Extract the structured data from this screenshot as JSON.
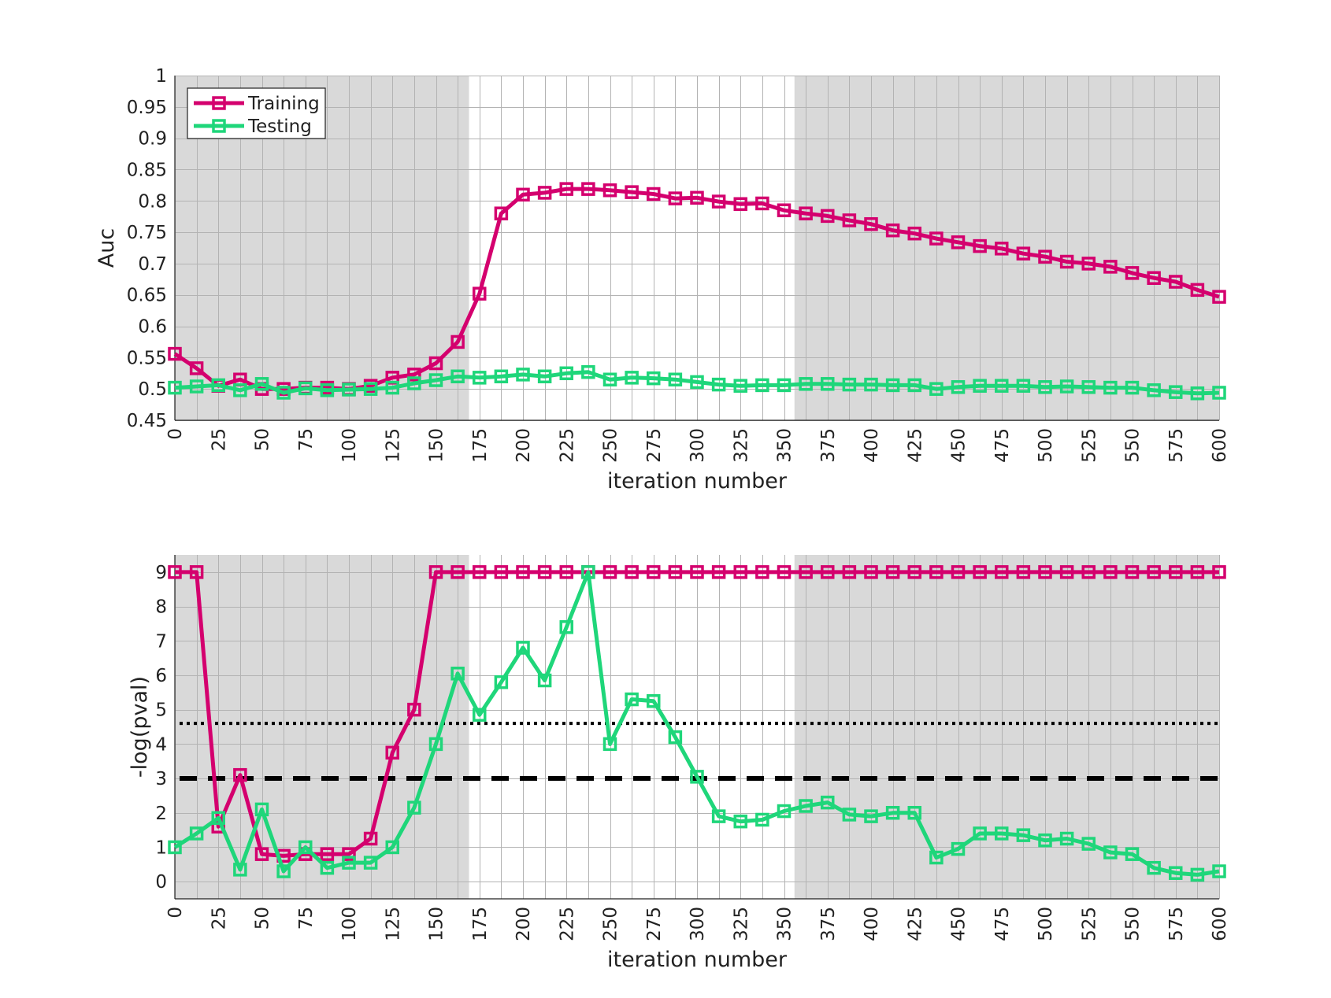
{
  "colors": {
    "training": "#d4006e",
    "testing": "#1fd67a",
    "shade": "#d9d9d9",
    "grid": "#b3b3b3",
    "axis": "#222222",
    "threshold": "#000000"
  },
  "legend": {
    "placement": "top-left",
    "entries": [
      "Training",
      "Testing"
    ]
  },
  "chart_data": [
    {
      "type": "line",
      "xlabel": "iteration number",
      "ylabel": "Auc",
      "xlim": [
        0,
        600
      ],
      "ylim": [
        0.45,
        1
      ],
      "xticks": [
        0,
        25,
        50,
        75,
        100,
        125,
        150,
        175,
        200,
        225,
        250,
        275,
        300,
        325,
        350,
        375,
        400,
        425,
        450,
        475,
        500,
        525,
        550,
        575,
        600
      ],
      "xtick_labels": [
        "0",
        "25",
        "50",
        "75",
        "100",
        "125",
        "150",
        "175",
        "200",
        "225",
        "250",
        "275",
        "300",
        "325",
        "350",
        "375",
        "400",
        "425",
        "450",
        "475",
        "500",
        "525",
        "550",
        "575",
        "600"
      ],
      "yticks": [
        0.45,
        0.5,
        0.55,
        0.6,
        0.65,
        0.7,
        0.75,
        0.8,
        0.85,
        0.9,
        0.95,
        1
      ],
      "ytick_labels": [
        "0.45",
        "0.5",
        "0.55",
        "0.6",
        "0.65",
        "0.7",
        "0.75",
        "0.8",
        "0.85",
        "0.9",
        "0.95",
        "1"
      ],
      "grid": true,
      "shaded_x_ranges": [
        [
          0,
          169
        ],
        [
          356,
          600
        ]
      ],
      "x": [
        0,
        12.5,
        25,
        37.5,
        50,
        62.5,
        75,
        87.5,
        100,
        112.5,
        125,
        137.5,
        150,
        162.5,
        175,
        187.5,
        200,
        212.5,
        225,
        237.5,
        250,
        262.5,
        275,
        287.5,
        300,
        312.5,
        325,
        337.5,
        350,
        362.5,
        375,
        387.5,
        400,
        412.5,
        425,
        437.5,
        450,
        462.5,
        475,
        487.5,
        500,
        512.5,
        525,
        537.5,
        550,
        562.5,
        575,
        587.5,
        600
      ],
      "series": [
        {
          "name": "Training",
          "values": [
            0.556,
            0.533,
            0.505,
            0.515,
            0.5,
            0.5,
            0.502,
            0.502,
            0.5,
            0.505,
            0.518,
            0.523,
            0.541,
            0.575,
            0.652,
            0.78,
            0.81,
            0.813,
            0.819,
            0.819,
            0.817,
            0.814,
            0.811,
            0.804,
            0.805,
            0.799,
            0.795,
            0.796,
            0.785,
            0.78,
            0.776,
            0.769,
            0.763,
            0.753,
            0.748,
            0.74,
            0.734,
            0.728,
            0.724,
            0.716,
            0.711,
            0.703,
            0.7,
            0.695,
            0.685,
            0.677,
            0.671,
            0.658,
            0.647
          ]
        },
        {
          "name": "Testing",
          "values": [
            0.502,
            0.504,
            0.506,
            0.498,
            0.508,
            0.494,
            0.501,
            0.498,
            0.499,
            0.5,
            0.502,
            0.509,
            0.514,
            0.52,
            0.518,
            0.52,
            0.523,
            0.52,
            0.525,
            0.527,
            0.515,
            0.518,
            0.517,
            0.515,
            0.511,
            0.507,
            0.505,
            0.506,
            0.506,
            0.508,
            0.508,
            0.507,
            0.507,
            0.506,
            0.506,
            0.5,
            0.503,
            0.505,
            0.505,
            0.505,
            0.503,
            0.504,
            0.503,
            0.502,
            0.502,
            0.498,
            0.495,
            0.493,
            0.494
          ]
        }
      ]
    },
    {
      "type": "line",
      "xlabel": "iteration number",
      "ylabel": "-log(pval)",
      "xlim": [
        0,
        600
      ],
      "ylim": [
        -0.5,
        9.5
      ],
      "xticks": [
        0,
        25,
        50,
        75,
        100,
        125,
        150,
        175,
        200,
        225,
        250,
        275,
        300,
        325,
        350,
        375,
        400,
        425,
        450,
        475,
        500,
        525,
        550,
        575,
        600
      ],
      "xtick_labels": [
        "0",
        "25",
        "50",
        "75",
        "100",
        "125",
        "150",
        "175",
        "200",
        "225",
        "250",
        "275",
        "300",
        "325",
        "350",
        "375",
        "400",
        "425",
        "450",
        "475",
        "500",
        "525",
        "550",
        "575",
        "600"
      ],
      "yticks": [
        0,
        1,
        2,
        3,
        4,
        5,
        6,
        7,
        8,
        9
      ],
      "ytick_labels": [
        "0",
        "1",
        "2",
        "3",
        "4",
        "5",
        "6",
        "7",
        "8",
        "9"
      ],
      "grid": true,
      "shaded_x_ranges": [
        [
          0,
          169
        ],
        [
          356,
          600
        ]
      ],
      "reference_lines": [
        {
          "y": 4.6,
          "style": "dotted"
        },
        {
          "y": 3.0,
          "style": "dashed"
        }
      ],
      "x": [
        0,
        12.5,
        25,
        37.5,
        50,
        62.5,
        75,
        87.5,
        100,
        112.5,
        125,
        137.5,
        150,
        162.5,
        175,
        187.5,
        200,
        212.5,
        225,
        237.5,
        250,
        262.5,
        275,
        287.5,
        300,
        312.5,
        325,
        337.5,
        350,
        362.5,
        375,
        387.5,
        400,
        412.5,
        425,
        437.5,
        450,
        462.5,
        475,
        487.5,
        500,
        512.5,
        525,
        537.5,
        550,
        562.5,
        575,
        587.5,
        600
      ],
      "series": [
        {
          "name": "Training",
          "values": [
            9,
            9,
            1.6,
            3.1,
            0.8,
            0.75,
            0.8,
            0.8,
            0.8,
            1.25,
            3.75,
            5,
            9,
            9,
            9,
            9,
            9,
            9,
            9,
            9,
            9,
            9,
            9,
            9,
            9,
            9,
            9,
            9,
            9,
            9,
            9,
            9,
            9,
            9,
            9,
            9,
            9,
            9,
            9,
            9,
            9,
            9,
            9,
            9,
            9,
            9,
            9,
            9,
            9
          ]
        },
        {
          "name": "Testing",
          "values": [
            1,
            1.4,
            1.85,
            0.35,
            2.1,
            0.3,
            1,
            0.4,
            0.55,
            0.55,
            1,
            2.15,
            4,
            6.05,
            4.85,
            5.8,
            6.8,
            5.85,
            7.4,
            9,
            4,
            5.3,
            5.25,
            4.2,
            3.05,
            1.9,
            1.75,
            1.8,
            2.05,
            2.2,
            2.3,
            1.95,
            1.9,
            2,
            2,
            0.7,
            0.95,
            1.4,
            1.4,
            1.35,
            1.2,
            1.25,
            1.1,
            0.85,
            0.8,
            0.4,
            0.25,
            0.2,
            0.3
          ]
        }
      ]
    }
  ]
}
